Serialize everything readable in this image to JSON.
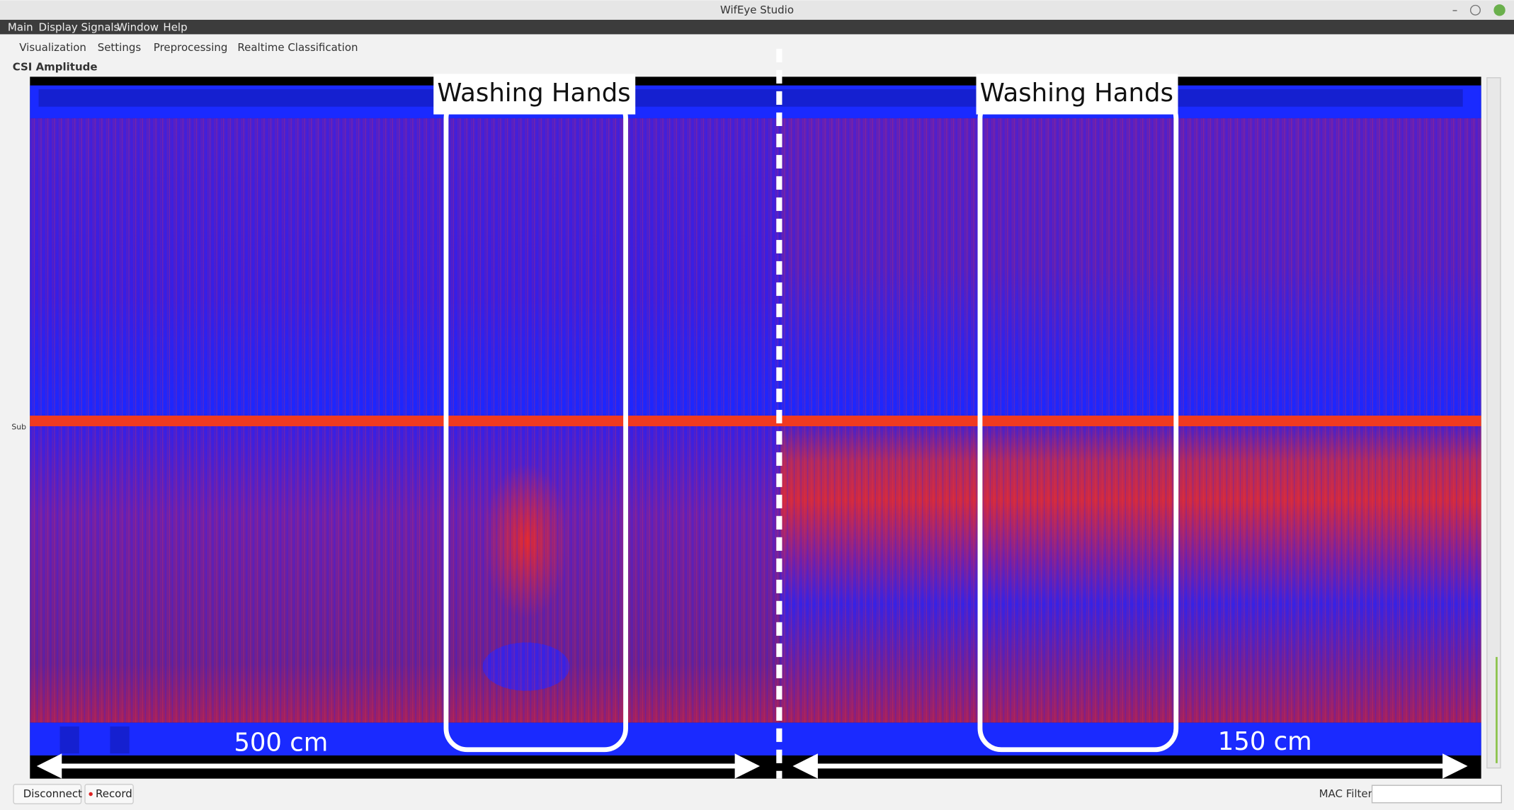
{
  "window_title": "WifEye Studio",
  "menu": [
    "Main",
    "Display Signals",
    "Window",
    "Help"
  ],
  "tabs": [
    "Visualization",
    "Settings",
    "Preprocessing",
    "Realtime Classification"
  ],
  "panel_title": "CSI Amplitude",
  "y_axis_label": "Sub",
  "annotations": {
    "activities": [
      "Washing Hands",
      "Washing Hands"
    ],
    "distances": [
      "500 cm",
      "150 cm"
    ]
  },
  "buttons": [
    "Disconnect",
    "Record"
  ],
  "mac_filter_label": "MAC Filter"
}
